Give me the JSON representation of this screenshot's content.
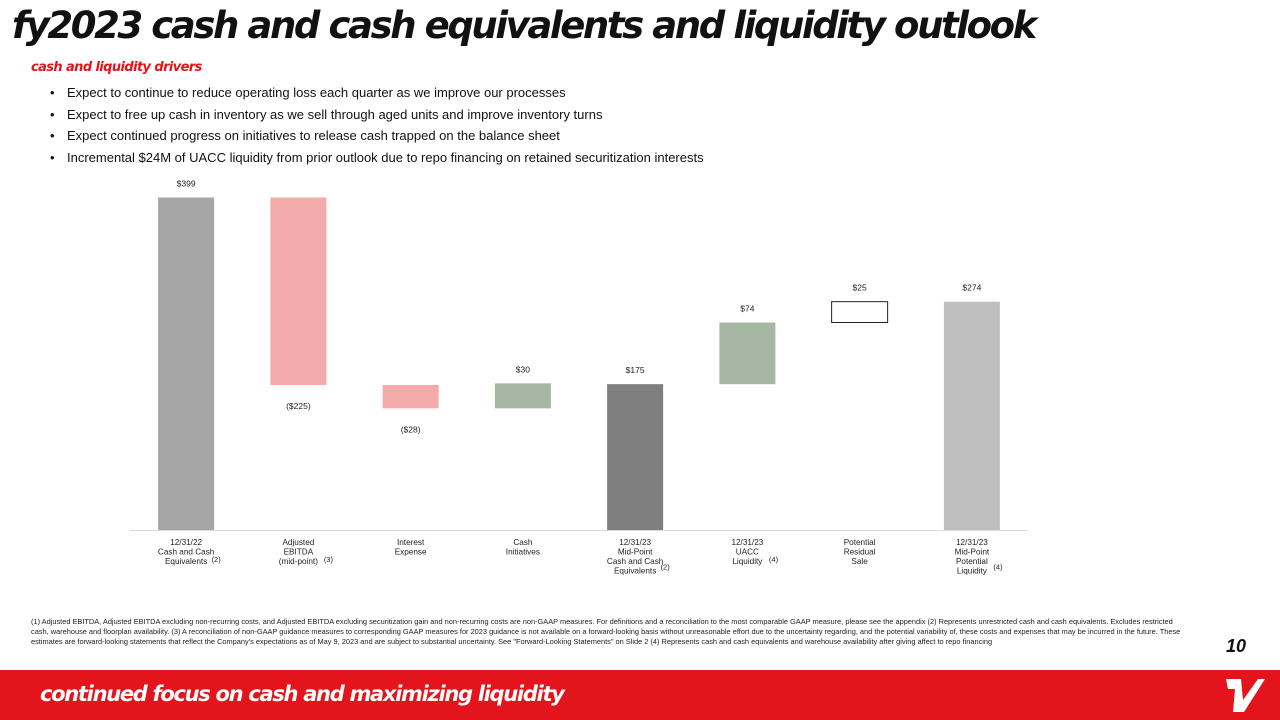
{
  "page": {
    "title": "fy2023 cash and cash equivalents and liquidity outlook",
    "subtitle": "cash and liquidity drivers",
    "bullets": [
      "Expect to continue to reduce operating loss each quarter as we improve our processes",
      "Expect to free up cash in inventory as we sell through aged units and improve inventory turns",
      "Expect continued progress on initiatives to release cash trapped on the balance sheet",
      "Incremental $24M of UACC liquidity from prior outlook due to repo financing on retained securitization interests"
    ],
    "footnotes": "(1) Adjusted EBITDA, Adjusted EBITDA excluding non-recurring costs, and Adjusted EBITDA excluding securitization gain and non-recurring costs are non-GAAP measures. For definitions and a reconciliation to the most comparable GAAP measure, please see the appendix (2) Represents unrestricted cash and cash equivalents. Excludes restricted cash, warehouse and floorplan availability. (3) A reconciliation of non-GAAP guidance measures to corresponding GAAP measures for 2023 guidance is not available on a forward-looking basis without unreasonable effort due to the uncertainty regarding, and the potential variability of, these costs and expenses that may be incurred in the future. These estimates are forward-looking statements that reflect the Company's expectations as of May 9, 2023 and are subject to substantial uncertainty. See \"Forward-Looking Statements\" on Slide 2 (4) Represents cash and cash equivalents and warehouse availability after giving affect to repo financing",
    "page_number": "10",
    "tagline": "continued focus on cash and maximizing liquidity",
    "bullet_glyph": "•",
    "logo_icon": "vroom-v-logo-icon",
    "colors": {
      "brand_red": "#e3141b",
      "start_bar": "#a6a6a6",
      "negative": "#f2aaab",
      "positive": "#a6b8a4",
      "midpoint": "#7f7f7f",
      "end_bar": "#bfbfbf",
      "outline": "#222222"
    }
  },
  "chart_data": {
    "type": "waterfall",
    "ylim": [
      0,
      420
    ],
    "gridlines": false,
    "bars": [
      {
        "category": [
          "12/31/22",
          "Cash and Cash",
          "Equivalents"
        ],
        "footnote": "(2)",
        "kind": "total",
        "start": 0,
        "end": 399,
        "label": "$399",
        "color": "#a6a6a6"
      },
      {
        "category": [
          "Adjusted",
          "EBITDA",
          "(mid-point)"
        ],
        "footnote": "(3)",
        "kind": "delta",
        "start": 399,
        "end": 174,
        "label": "($225)",
        "color": "#f2aaab"
      },
      {
        "category": [
          "Interest",
          "Expense"
        ],
        "footnote": "",
        "kind": "delta",
        "start": 174,
        "end": 146,
        "label": "($28)",
        "color": "#f2aaab"
      },
      {
        "category": [
          "Cash",
          "Initiatives"
        ],
        "footnote": "",
        "kind": "delta",
        "start": 146,
        "end": 176,
        "label": "$30",
        "color": "#a6b8a4"
      },
      {
        "category": [
          "12/31/23",
          "Mid-Point",
          "Cash and Cash",
          "Equivalents"
        ],
        "footnote": "(2)",
        "kind": "total",
        "start": 0,
        "end": 175,
        "label": "$175",
        "color": "#7f7f7f"
      },
      {
        "category": [
          "12/31/23",
          "UACC",
          "Liquidity"
        ],
        "footnote": "(4)",
        "kind": "delta",
        "start": 175,
        "end": 249,
        "label": "$74",
        "color": "#a6b8a4"
      },
      {
        "category": [
          "Potential",
          "Residual",
          "Sale"
        ],
        "footnote": "",
        "kind": "outline",
        "start": 249,
        "end": 274,
        "label": "$25",
        "color": "#ffffff"
      },
      {
        "category": [
          "12/31/23",
          "Mid-Point",
          "Potential",
          "Liquidity"
        ],
        "footnote": "(4)",
        "kind": "total",
        "start": 0,
        "end": 274,
        "label": "$274",
        "color": "#bfbfbf"
      }
    ]
  }
}
